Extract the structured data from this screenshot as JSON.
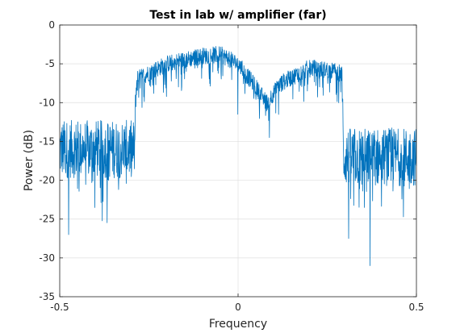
{
  "chart_data": {
    "type": "line",
    "title": "Test in lab w/ amplifier (far)",
    "xlabel": "Frequency",
    "ylabel": "Power (dB)",
    "xlim": [
      -0.5,
      0.5
    ],
    "ylim": [
      -35,
      0
    ],
    "xticks": [
      -0.5,
      0,
      0.5
    ],
    "xtick_labels": [
      "-0.5",
      "0",
      "0.5"
    ],
    "yticks": [
      0,
      -5,
      -10,
      -15,
      -20,
      -25,
      -30,
      -35
    ],
    "ytick_labels": [
      "0",
      "-5",
      "-10",
      "-15",
      "-20",
      "-25",
      "-30",
      "-35"
    ],
    "grid": true,
    "series": [
      {
        "name": "power",
        "color": "#0072BD",
        "envelope": [
          {
            "x": -0.5,
            "y": -16.0
          },
          {
            "x": -0.29,
            "y": -16.0
          },
          {
            "x": -0.285,
            "y": -7.0
          },
          {
            "x": -0.2,
            "y": -5.0
          },
          {
            "x": -0.1,
            "y": -4.0
          },
          {
            "x": -0.05,
            "y": -3.8
          },
          {
            "x": 0.0,
            "y": -5.0
          },
          {
            "x": 0.05,
            "y": -8.0
          },
          {
            "x": 0.08,
            "y": -10.0
          },
          {
            "x": 0.12,
            "y": -7.5
          },
          {
            "x": 0.2,
            "y": -5.5
          },
          {
            "x": 0.28,
            "y": -6.0
          },
          {
            "x": 0.292,
            "y": -6.5
          },
          {
            "x": 0.295,
            "y": -17.0
          },
          {
            "x": 0.5,
            "y": -17.0
          }
        ],
        "notable_dips": [
          {
            "x": -0.001,
            "y": -11.5
          },
          {
            "x": 0.088,
            "y": -14.5
          },
          {
            "x": 0.37,
            "y": -31.0
          },
          {
            "x": 0.31,
            "y": -27.5
          },
          {
            "x": -0.475,
            "y": -27.0
          }
        ]
      }
    ]
  }
}
